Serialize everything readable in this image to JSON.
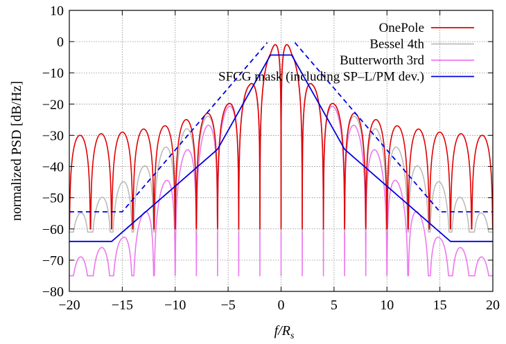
{
  "chart_data": {
    "type": "line",
    "xlabel": "f/R",
    "xlabel_sub": "s",
    "ylabel": "normalized PSD [dB/Hz]",
    "xlim": [
      -20,
      20
    ],
    "ylim": [
      -80,
      10
    ],
    "xticks": [
      -20,
      -15,
      -10,
      -5,
      0,
      5,
      10,
      15,
      20
    ],
    "xtick_labels": [
      "−20",
      "−15",
      "−10",
      "−5",
      "0",
      "5",
      "10",
      "15",
      "20"
    ],
    "yticks": [
      -80,
      -70,
      -60,
      -50,
      -40,
      -30,
      -20,
      -10,
      0,
      10
    ],
    "ytick_labels": [
      "−80",
      "−70",
      "−60",
      "−50",
      "−40",
      "−30",
      "−20",
      "−10",
      "0",
      "10"
    ],
    "grid": true,
    "legend_position": "top-right",
    "series": [
      {
        "name": "OnePole",
        "color": "#e00000",
        "style": "solid",
        "kind": "psd",
        "null_spacing": 2,
        "peak_curve": {
          "x": [
            0,
            1,
            3,
            5,
            7,
            9,
            11,
            13,
            15,
            17,
            19,
            20
          ],
          "y": [
            8,
            -4,
            -14,
            -20,
            -23,
            -25,
            -27,
            -28,
            -29,
            -29.5,
            -30,
            -30
          ]
        },
        "null_floor": -60
      },
      {
        "name": "Bessel 4th",
        "color": "#bbbbbb",
        "style": "solid",
        "kind": "psd",
        "null_spacing": 2,
        "peak_curve": {
          "x": [
            0,
            1,
            3,
            5,
            7,
            9,
            11,
            13,
            15,
            17,
            19,
            20
          ],
          "y": [
            8,
            -4,
            -14,
            -20,
            -24,
            -28,
            -34,
            -40,
            -45,
            -50,
            -55,
            -57
          ]
        },
        "null_floor": -61
      },
      {
        "name": "Butterworth 3rd",
        "color": "#ee77ee",
        "style": "solid",
        "kind": "psd",
        "null_spacing": 2,
        "peak_curve": {
          "x": [
            0,
            1,
            3,
            5,
            7,
            9,
            11,
            13,
            15,
            17,
            19,
            20
          ],
          "y": [
            8,
            -4,
            -14,
            -21,
            -27,
            -35,
            -45,
            -55,
            -63,
            -66,
            -69,
            -71
          ]
        },
        "null_floor": -75
      },
      {
        "name": "SFCG mask (including SP–L/PM dev.)",
        "color": "#0000dd",
        "style": "solid",
        "kind": "line",
        "x": [
          -20,
          -16,
          -6,
          -1,
          1,
          6,
          16,
          20
        ],
        "y": [
          -64,
          -64,
          -34.5,
          -4.3,
          -4.3,
          -34.5,
          -64,
          -64
        ]
      },
      {
        "color": "#0000dd",
        "style": "dashed",
        "kind": "line",
        "x": [
          -20,
          -15,
          -1.3
        ],
        "y": [
          -54.5,
          -54.5,
          -0.3
        ]
      },
      {
        "color": "#0000dd",
        "style": "dashed",
        "kind": "line",
        "x": [
          1.3,
          15,
          20
        ],
        "y": [
          -0.3,
          -54.5,
          -54.5
        ]
      }
    ]
  }
}
